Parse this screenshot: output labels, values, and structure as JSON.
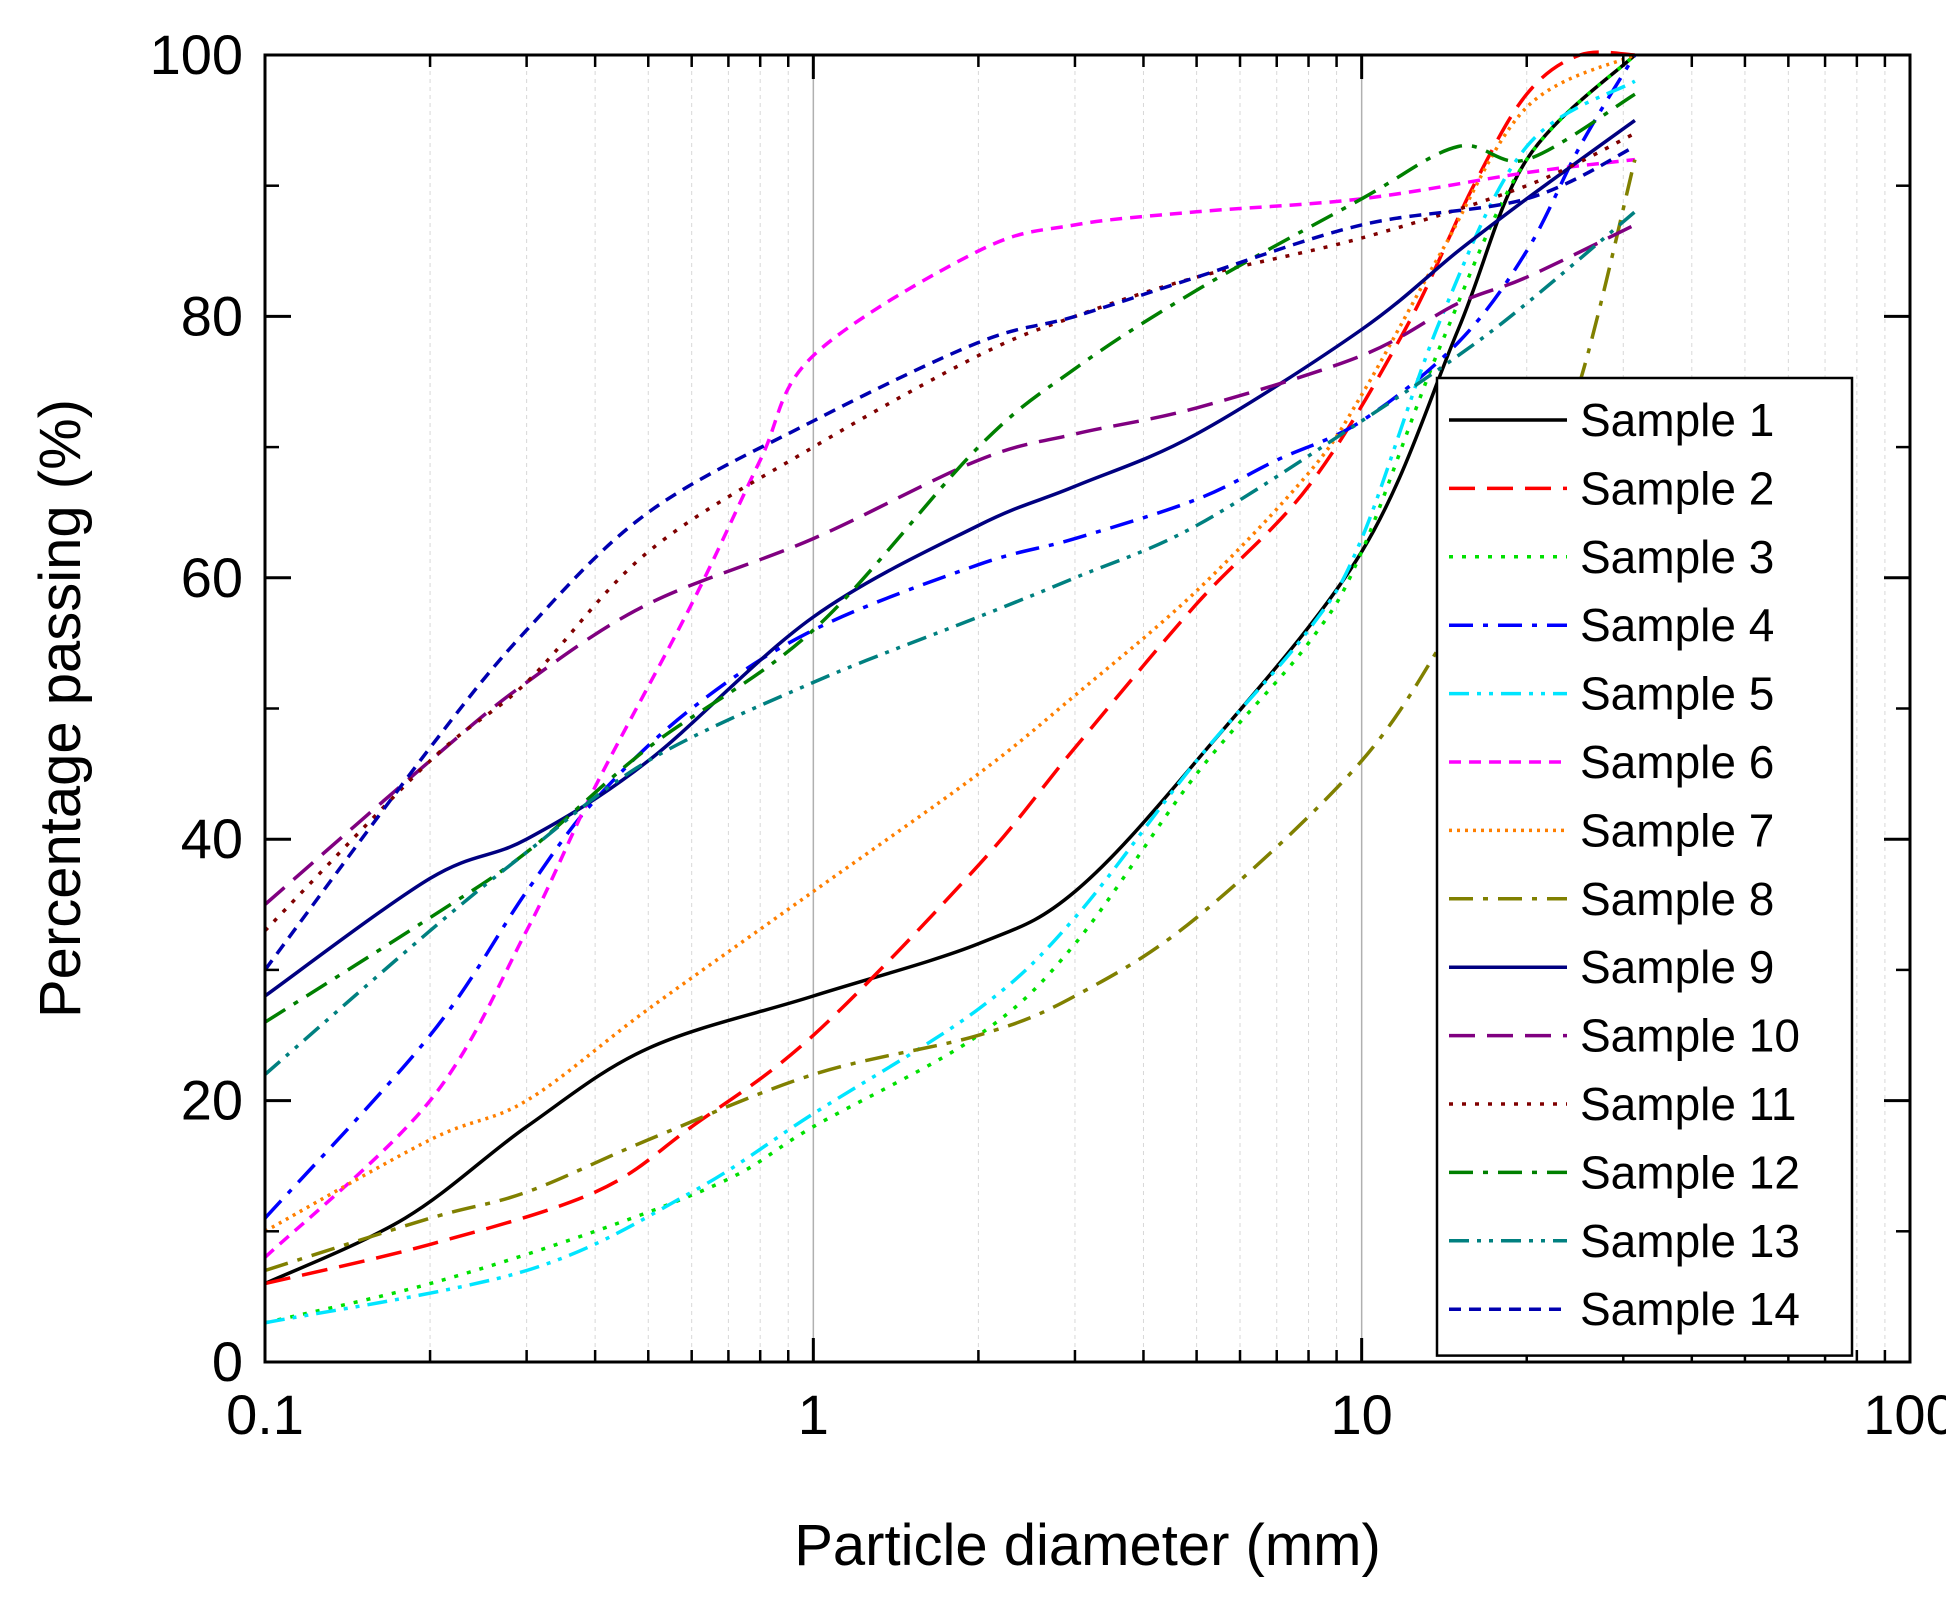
{
  "chart_data": {
    "type": "line",
    "title": "",
    "xlabel": "Particle diameter (mm)",
    "ylabel": "Percentage passing (%)",
    "xscale": "log",
    "xlim": [
      0.1,
      100
    ],
    "ylim": [
      0,
      100
    ],
    "xticks": [
      {
        "value": 0.1,
        "label": "0.1"
      },
      {
        "value": 1,
        "label": "1"
      },
      {
        "value": 10,
        "label": "10"
      },
      {
        "value": 100,
        "label": "100"
      }
    ],
    "yticks": [
      {
        "value": 0,
        "label": "0"
      },
      {
        "value": 20,
        "label": "20"
      },
      {
        "value": 40,
        "label": "40"
      },
      {
        "value": 60,
        "label": "60"
      },
      {
        "value": 80,
        "label": "80"
      },
      {
        "value": 100,
        "label": "100"
      }
    ],
    "grid": "minor-x",
    "legend_position": "right",
    "series": [
      {
        "name": "Sample 1",
        "color": "#000000",
        "dash": "solid",
        "points": [
          [
            0.1,
            6
          ],
          [
            0.18,
            11
          ],
          [
            0.3,
            18
          ],
          [
            0.5,
            24
          ],
          [
            1,
            28
          ],
          [
            2,
            32
          ],
          [
            3,
            36
          ],
          [
            5,
            46
          ],
          [
            10,
            62
          ],
          [
            15,
            79
          ],
          [
            20,
            92
          ],
          [
            31.5,
            100
          ]
        ]
      },
      {
        "name": "Sample 2",
        "color": "#ff0000",
        "dash": "longdash",
        "points": [
          [
            0.1,
            6
          ],
          [
            0.2,
            9
          ],
          [
            0.4,
            13
          ],
          [
            0.6,
            18
          ],
          [
            1,
            25
          ],
          [
            2,
            38
          ],
          [
            3,
            47
          ],
          [
            5,
            58
          ],
          [
            8,
            67
          ],
          [
            12,
            79
          ],
          [
            16,
            90
          ],
          [
            20,
            97
          ],
          [
            25,
            100
          ],
          [
            31.5,
            100
          ]
        ]
      },
      {
        "name": "Sample 3",
        "color": "#00e000",
        "dash": "dot",
        "points": [
          [
            0.1,
            3
          ],
          [
            0.2,
            6
          ],
          [
            0.4,
            10
          ],
          [
            0.7,
            14
          ],
          [
            1,
            18
          ],
          [
            2,
            25
          ],
          [
            3,
            32
          ],
          [
            5,
            45
          ],
          [
            8,
            55
          ],
          [
            10,
            62
          ],
          [
            14,
            78
          ],
          [
            20,
            92
          ],
          [
            31.5,
            100
          ]
        ]
      },
      {
        "name": "Sample 4",
        "color": "#0000ff",
        "dash": "dashdot",
        "points": [
          [
            0.1,
            11
          ],
          [
            0.2,
            25
          ],
          [
            0.3,
            36
          ],
          [
            0.4,
            43
          ],
          [
            0.6,
            50
          ],
          [
            1,
            56
          ],
          [
            2,
            61
          ],
          [
            3,
            63
          ],
          [
            5,
            66
          ],
          [
            7,
            69
          ],
          [
            10,
            72
          ],
          [
            15,
            78
          ],
          [
            20,
            85
          ],
          [
            25,
            93
          ],
          [
            31.5,
            100
          ]
        ]
      },
      {
        "name": "Sample 5",
        "color": "#00e5ff",
        "dash": "dashdotdot",
        "points": [
          [
            0.1,
            3
          ],
          [
            0.3,
            7
          ],
          [
            0.6,
            13
          ],
          [
            1,
            19
          ],
          [
            2,
            27
          ],
          [
            3,
            34
          ],
          [
            5,
            46
          ],
          [
            8,
            56
          ],
          [
            10,
            63
          ],
          [
            14,
            80
          ],
          [
            20,
            93
          ],
          [
            31.5,
            98
          ]
        ]
      },
      {
        "name": "Sample 6",
        "color": "#ff00ff",
        "dash": "shortdash",
        "points": [
          [
            0.1,
            8
          ],
          [
            0.2,
            20
          ],
          [
            0.3,
            33
          ],
          [
            0.4,
            44
          ],
          [
            0.6,
            58
          ],
          [
            0.8,
            69
          ],
          [
            1,
            77
          ],
          [
            2,
            85
          ],
          [
            3,
            87
          ],
          [
            5,
            88
          ],
          [
            10,
            89
          ],
          [
            20,
            91
          ],
          [
            31.5,
            92
          ]
        ]
      },
      {
        "name": "Sample 7",
        "color": "#ff7f00",
        "dash": "shortdot",
        "points": [
          [
            0.1,
            10
          ],
          [
            0.2,
            17
          ],
          [
            0.3,
            20
          ],
          [
            0.5,
            27
          ],
          [
            1,
            36
          ],
          [
            2,
            45
          ],
          [
            3,
            51
          ],
          [
            5,
            59
          ],
          [
            8,
            68
          ],
          [
            10,
            74
          ],
          [
            14,
            85
          ],
          [
            20,
            96
          ],
          [
            31.5,
            100
          ]
        ]
      },
      {
        "name": "Sample 8",
        "color": "#808000",
        "dash": "dashdot",
        "points": [
          [
            0.1,
            7
          ],
          [
            0.2,
            11
          ],
          [
            0.3,
            13
          ],
          [
            0.5,
            17
          ],
          [
            1,
            22
          ],
          [
            2,
            25
          ],
          [
            3,
            28
          ],
          [
            5,
            34
          ],
          [
            10,
            46
          ],
          [
            15,
            57
          ],
          [
            20,
            65
          ],
          [
            25,
            75
          ],
          [
            31.5,
            92
          ]
        ]
      },
      {
        "name": "Sample 9",
        "color": "#000080",
        "dash": "solid",
        "points": [
          [
            0.1,
            28
          ],
          [
            0.2,
            37
          ],
          [
            0.3,
            40
          ],
          [
            0.5,
            46
          ],
          [
            1,
            57
          ],
          [
            2,
            64
          ],
          [
            3,
            67
          ],
          [
            5,
            71
          ],
          [
            10,
            79
          ],
          [
            15,
            85
          ],
          [
            20,
            89
          ],
          [
            31.5,
            95
          ]
        ]
      },
      {
        "name": "Sample 10",
        "color": "#800080",
        "dash": "longdash",
        "points": [
          [
            0.1,
            35
          ],
          [
            0.2,
            46
          ],
          [
            0.3,
            52
          ],
          [
            0.5,
            58
          ],
          [
            1,
            63
          ],
          [
            2,
            69
          ],
          [
            3,
            71
          ],
          [
            5,
            73
          ],
          [
            10,
            77
          ],
          [
            15,
            81
          ],
          [
            20,
            83
          ],
          [
            31.5,
            87
          ]
        ]
      },
      {
        "name": "Sample 11",
        "color": "#800000",
        "dash": "dot",
        "points": [
          [
            0.1,
            33
          ],
          [
            0.2,
            46
          ],
          [
            0.3,
            52
          ],
          [
            0.5,
            62
          ],
          [
            1,
            70
          ],
          [
            2,
            77
          ],
          [
            3,
            80
          ],
          [
            5,
            83
          ],
          [
            10,
            86
          ],
          [
            20,
            90
          ],
          [
            31.5,
            94
          ]
        ]
      },
      {
        "name": "Sample 12",
        "color": "#008000",
        "dash": "dashdot",
        "points": [
          [
            0.1,
            26
          ],
          [
            0.2,
            34
          ],
          [
            0.3,
            39
          ],
          [
            0.5,
            47
          ],
          [
            1,
            56
          ],
          [
            2,
            70
          ],
          [
            3,
            76
          ],
          [
            5,
            82
          ],
          [
            10,
            89
          ],
          [
            15,
            93
          ],
          [
            20,
            92
          ],
          [
            31.5,
            97
          ]
        ]
      },
      {
        "name": "Sample 13",
        "color": "#008080",
        "dash": "dashdotdot",
        "points": [
          [
            0.1,
            22
          ],
          [
            0.2,
            33
          ],
          [
            0.3,
            39
          ],
          [
            0.5,
            46
          ],
          [
            1,
            52
          ],
          [
            2,
            57
          ],
          [
            3,
            60
          ],
          [
            5,
            64
          ],
          [
            10,
            72
          ],
          [
            15,
            77
          ],
          [
            20,
            81
          ],
          [
            31.5,
            88
          ]
        ]
      },
      {
        "name": "Sample 14",
        "color": "#0000b0",
        "dash": "shortdash",
        "points": [
          [
            0.1,
            30
          ],
          [
            0.2,
            47
          ],
          [
            0.3,
            56
          ],
          [
            0.5,
            65
          ],
          [
            1,
            72
          ],
          [
            2,
            78
          ],
          [
            3,
            80
          ],
          [
            5,
            83
          ],
          [
            10,
            87
          ],
          [
            20,
            89
          ],
          [
            31.5,
            93
          ]
        ]
      }
    ]
  }
}
